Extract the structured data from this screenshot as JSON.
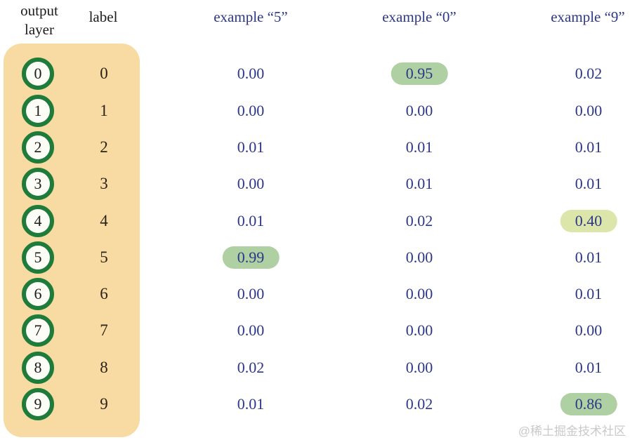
{
  "header": {
    "output_layer": [
      "output",
      "layer"
    ],
    "label": "label",
    "examples": [
      "example “5”",
      "example “0”",
      "example “9”"
    ]
  },
  "table": {
    "rows": [
      {
        "neuron": "0",
        "label": "0",
        "values": [
          {
            "text": "0.00",
            "highlight": null
          },
          {
            "text": "0.95",
            "highlight": "green"
          },
          {
            "text": "0.02",
            "highlight": null
          }
        ]
      },
      {
        "neuron": "1",
        "label": "1",
        "values": [
          {
            "text": "0.00",
            "highlight": null
          },
          {
            "text": "0.00",
            "highlight": null
          },
          {
            "text": "0.00",
            "highlight": null
          }
        ]
      },
      {
        "neuron": "2",
        "label": "2",
        "values": [
          {
            "text": "0.01",
            "highlight": null
          },
          {
            "text": "0.01",
            "highlight": null
          },
          {
            "text": "0.01",
            "highlight": null
          }
        ]
      },
      {
        "neuron": "3",
        "label": "3",
        "values": [
          {
            "text": "0.00",
            "highlight": null
          },
          {
            "text": "0.01",
            "highlight": null
          },
          {
            "text": "0.01",
            "highlight": null
          }
        ]
      },
      {
        "neuron": "4",
        "label": "4",
        "values": [
          {
            "text": "0.01",
            "highlight": null
          },
          {
            "text": "0.02",
            "highlight": null
          },
          {
            "text": "0.40",
            "highlight": "yellow"
          }
        ]
      },
      {
        "neuron": "5",
        "label": "5",
        "values": [
          {
            "text": "0.99",
            "highlight": "green"
          },
          {
            "text": "0.00",
            "highlight": null
          },
          {
            "text": "0.01",
            "highlight": null
          }
        ]
      },
      {
        "neuron": "6",
        "label": "6",
        "values": [
          {
            "text": "0.00",
            "highlight": null
          },
          {
            "text": "0.00",
            "highlight": null
          },
          {
            "text": "0.01",
            "highlight": null
          }
        ]
      },
      {
        "neuron": "7",
        "label": "7",
        "values": [
          {
            "text": "0.00",
            "highlight": null
          },
          {
            "text": "0.00",
            "highlight": null
          },
          {
            "text": "0.00",
            "highlight": null
          }
        ]
      },
      {
        "neuron": "8",
        "label": "8",
        "values": [
          {
            "text": "0.02",
            "highlight": null
          },
          {
            "text": "0.00",
            "highlight": null
          },
          {
            "text": "0.01",
            "highlight": null
          }
        ]
      },
      {
        "neuron": "9",
        "label": "9",
        "values": [
          {
            "text": "0.01",
            "highlight": null
          },
          {
            "text": "0.02",
            "highlight": null
          },
          {
            "text": "0.86",
            "highlight": "green"
          }
        ]
      }
    ]
  },
  "watermark": "@稀土掘金技术社区",
  "colors": {
    "panel": "#f7dba3",
    "ring": "#1e7b3a",
    "navy": "#2c3789",
    "hlGreen": "#aed0a3",
    "hlYellow": "#dce5aa",
    "watermark": "#c9c9c9"
  }
}
